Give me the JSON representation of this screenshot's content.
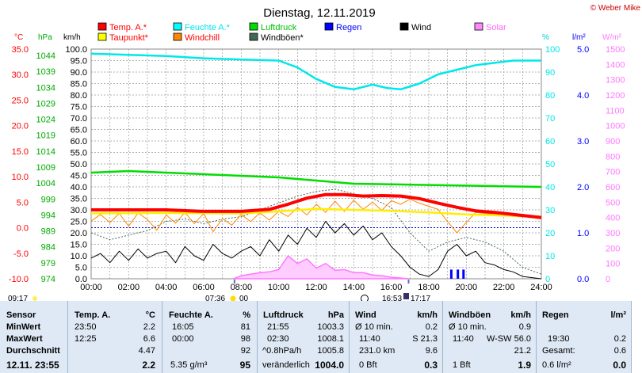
{
  "title": "Dienstag, 12.11.2019",
  "copyright": "© Weber Mike",
  "legend": [
    {
      "label": "Temp. A.*",
      "color": "#ff0000",
      "text_color": "#ff0000"
    },
    {
      "label": "Feuchte A.*",
      "color": "#00ffff",
      "text_color": "#00e5e5"
    },
    {
      "label": "Luftdruck",
      "color": "#00dd00",
      "text_color": "#00c000"
    },
    {
      "label": "Regen",
      "color": "#0000ff",
      "text_color": "#0000ff"
    },
    {
      "label": "Wind",
      "color": "#000000",
      "text_color": "#000000"
    },
    {
      "label": "Solar",
      "color": "#ff88ff",
      "text_color": "#ff66ff"
    },
    {
      "label": "Taupunkt*",
      "color": "#ffff00",
      "text_color": "#ff0000"
    },
    {
      "label": "Windchill",
      "color": "#ff8800",
      "text_color": "#ff0000"
    },
    {
      "label": "Windböen*",
      "color": "#446655",
      "text_color": "#000000"
    }
  ],
  "axes": {
    "temp": {
      "unit": "°C",
      "ticks": [
        "35.0",
        "30.0",
        "25.0",
        "20.0",
        "15.0",
        "10.0",
        "5.0",
        "0.0",
        "-5.0",
        "-10.0"
      ],
      "color": "#ff0000"
    },
    "pressure": {
      "unit": "hPa",
      "ticks": [
        "1044",
        "1039",
        "1034",
        "1029",
        "1024",
        "1019",
        "1014",
        "1009",
        "1004",
        "999",
        "994",
        "989",
        "984",
        "979",
        "974"
      ],
      "color": "#00aa00"
    },
    "wind": {
      "unit": "km/h",
      "ticks": [
        "100.0",
        "95.0",
        "90.0",
        "85.0",
        "80.0",
        "75.0",
        "70.0",
        "65.0",
        "60.0",
        "55.0",
        "50.0",
        "45.0",
        "40.0",
        "35.0",
        "30.0",
        "25.0",
        "20.0",
        "15.0",
        "10.0",
        "5.0",
        "0.0"
      ],
      "color": "#000000"
    },
    "humidity": {
      "unit": "%",
      "ticks": [
        "100",
        "90",
        "80",
        "70",
        "60",
        "50",
        "40",
        "30",
        "20",
        "10",
        "0"
      ],
      "color": "#00e5e5"
    },
    "rain": {
      "unit": "l/m²",
      "ticks": [
        "5.0",
        "4.0",
        "3.0",
        "2.0",
        "1.0",
        "0.0"
      ],
      "color": "#0000ff"
    },
    "solar": {
      "unit": "W/m²",
      "ticks": [
        "1500",
        "1400",
        "1300",
        "1200",
        "1100",
        "1000",
        "900",
        "800",
        "700",
        "600",
        "500",
        "400",
        "300",
        "200",
        "100",
        "0"
      ],
      "color": "#ff77ff"
    },
    "x_ticks": [
      "00:00",
      "02:00",
      "04:00",
      "06:00",
      "08:00",
      "10:00",
      "12:00",
      "14:00",
      "16:00",
      "18:00",
      "20:00",
      "22:00",
      "24:00"
    ]
  },
  "sun_moon": {
    "left_time": "09:17",
    "sunrise": "07:36",
    "sunrise_b": "00",
    "sunset": "16:53",
    "moonset": "17:17"
  },
  "chart_data": {
    "type": "line",
    "title": "Dienstag, 12.11.2019",
    "x_unit": "hours",
    "series": [
      {
        "name": "Temp. A.*",
        "axis": "temp",
        "points": [
          [
            0,
            3.5
          ],
          [
            2,
            3.5
          ],
          [
            4,
            3.5
          ],
          [
            6,
            3.2
          ],
          [
            8,
            3.2
          ],
          [
            9.5,
            3.6
          ],
          [
            10.5,
            4.6
          ],
          [
            11.5,
            5.8
          ],
          [
            12.5,
            6.5
          ],
          [
            13.5,
            6.5
          ],
          [
            14.5,
            6.2
          ],
          [
            15.5,
            6.3
          ],
          [
            16.5,
            6.2
          ],
          [
            17.5,
            5.7
          ],
          [
            18.5,
            4.8
          ],
          [
            19.5,
            4.0
          ],
          [
            20.5,
            3.3
          ],
          [
            21.5,
            3.0
          ],
          [
            22.5,
            2.6
          ],
          [
            24,
            2.0
          ]
        ]
      },
      {
        "name": "Taupunkt*",
        "axis": "temp",
        "points": [
          [
            0,
            2.8
          ],
          [
            4,
            2.9
          ],
          [
            8,
            2.8
          ],
          [
            10,
            3.2
          ],
          [
            12,
            3.7
          ],
          [
            14,
            3.5
          ],
          [
            16,
            3.3
          ],
          [
            18,
            3.0
          ],
          [
            20,
            2.6
          ],
          [
            22,
            2.4
          ],
          [
            24,
            2.2
          ]
        ]
      },
      {
        "name": "Windchill",
        "axis": "temp",
        "points": [
          [
            0,
            1.3
          ],
          [
            0.5,
            2.6
          ],
          [
            1,
            1.0
          ],
          [
            1.5,
            2.8
          ],
          [
            2,
            0.3
          ],
          [
            2.5,
            2.9
          ],
          [
            3,
            1.6
          ],
          [
            3.5,
            -0.5
          ],
          [
            4,
            2.5
          ],
          [
            4.5,
            0.9
          ],
          [
            5,
            3.0
          ],
          [
            5.5,
            0.8
          ],
          [
            6,
            2.8
          ],
          [
            6.5,
            -0.8
          ],
          [
            7,
            1.8
          ],
          [
            7.5,
            0.5
          ],
          [
            8,
            2.6
          ],
          [
            8.5,
            1.2
          ],
          [
            9,
            2.9
          ],
          [
            9.5,
            1.5
          ],
          [
            10,
            3.2
          ],
          [
            10.5,
            2.2
          ],
          [
            11,
            4.0
          ],
          [
            11.5,
            2.5
          ],
          [
            12,
            4.6
          ],
          [
            12.5,
            3.0
          ],
          [
            13,
            5.2
          ],
          [
            13.5,
            3.2
          ],
          [
            14,
            5.4
          ],
          [
            14.5,
            3.6
          ],
          [
            15,
            5.0
          ],
          [
            15.5,
            3.4
          ],
          [
            16,
            5.3
          ],
          [
            16.5,
            4.6
          ],
          [
            17,
            5.6
          ],
          [
            17.5,
            4.8
          ],
          [
            18,
            4.2
          ],
          [
            18.5,
            3.6
          ],
          [
            19,
            1.2
          ],
          [
            19.5,
            -1.0
          ],
          [
            20,
            1.0
          ],
          [
            20.5,
            3.0
          ],
          [
            21,
            2.8
          ],
          [
            21.5,
            2.6
          ],
          [
            22,
            2.4
          ],
          [
            22.5,
            2.2
          ],
          [
            24,
            2.0
          ]
        ]
      },
      {
        "name": "Feuchte A.*",
        "axis": "humidity",
        "points": [
          [
            0,
            98
          ],
          [
            2,
            97.5
          ],
          [
            4,
            97
          ],
          [
            6,
            96
          ],
          [
            8,
            95.5
          ],
          [
            10,
            95
          ],
          [
            11,
            92
          ],
          [
            12,
            87
          ],
          [
            13,
            83.5
          ],
          [
            14,
            82.5
          ],
          [
            15,
            84.5
          ],
          [
            15.8,
            83
          ],
          [
            16.5,
            82.5
          ],
          [
            17.5,
            85
          ],
          [
            18.5,
            89
          ],
          [
            19.5,
            91
          ],
          [
            20.5,
            93
          ],
          [
            21.5,
            94
          ],
          [
            22.5,
            95
          ],
          [
            24,
            95
          ]
        ]
      },
      {
        "name": "Luftdruck",
        "axis": "pressure",
        "points": [
          [
            0,
            1007.5
          ],
          [
            2,
            1008
          ],
          [
            4,
            1007.5
          ],
          [
            6,
            1007
          ],
          [
            8,
            1006.5
          ],
          [
            10,
            1006
          ],
          [
            12,
            1005
          ],
          [
            14,
            1004
          ],
          [
            16,
            1003.8
          ],
          [
            18,
            1003.6
          ],
          [
            20,
            1003.4
          ],
          [
            22,
            1003.2
          ],
          [
            24,
            1003.0
          ]
        ]
      },
      {
        "name": "Wind",
        "axis": "wind",
        "points": [
          [
            0,
            9
          ],
          [
            0.5,
            11
          ],
          [
            1,
            7
          ],
          [
            1.5,
            12
          ],
          [
            2,
            8
          ],
          [
            2.5,
            13
          ],
          [
            3,
            9
          ],
          [
            3.5,
            11
          ],
          [
            4,
            12
          ],
          [
            4.5,
            7
          ],
          [
            5,
            14
          ],
          [
            5.5,
            10
          ],
          [
            6,
            8
          ],
          [
            6.5,
            15
          ],
          [
            7,
            11
          ],
          [
            7.5,
            9
          ],
          [
            8,
            12
          ],
          [
            8.5,
            14
          ],
          [
            9,
            10
          ],
          [
            9.5,
            17
          ],
          [
            10,
            12
          ],
          [
            10.5,
            19
          ],
          [
            11,
            15
          ],
          [
            11.5,
            22
          ],
          [
            12,
            18
          ],
          [
            12.5,
            25
          ],
          [
            13,
            20
          ],
          [
            13.5,
            24
          ],
          [
            14,
            19
          ],
          [
            14.5,
            23
          ],
          [
            15,
            17
          ],
          [
            15.5,
            20
          ],
          [
            16,
            14
          ],
          [
            16.5,
            10
          ],
          [
            17,
            5
          ],
          [
            17.5,
            2
          ],
          [
            18,
            1
          ],
          [
            18.5,
            4
          ],
          [
            19,
            12
          ],
          [
            19.5,
            15
          ],
          [
            20,
            10
          ],
          [
            20.5,
            12
          ],
          [
            21,
            7
          ],
          [
            21.5,
            6
          ],
          [
            22,
            4
          ],
          [
            22.5,
            3
          ],
          [
            23,
            1
          ],
          [
            24,
            0
          ]
        ]
      },
      {
        "name": "Windböen*",
        "axis": "wind",
        "points": [
          [
            0,
            20
          ],
          [
            1,
            17
          ],
          [
            2,
            19
          ],
          [
            3,
            21
          ],
          [
            4,
            25
          ],
          [
            5,
            26
          ],
          [
            6,
            24
          ],
          [
            7,
            26
          ],
          [
            8,
            27
          ],
          [
            9,
            30
          ],
          [
            10,
            33
          ],
          [
            11,
            36
          ],
          [
            12,
            38
          ],
          [
            13,
            39
          ],
          [
            14,
            37
          ],
          [
            15,
            35
          ],
          [
            16,
            31
          ],
          [
            17,
            20
          ],
          [
            18,
            12
          ],
          [
            19,
            16
          ],
          [
            20,
            18
          ],
          [
            21,
            16
          ],
          [
            22,
            12
          ],
          [
            23,
            5
          ],
          [
            24,
            2
          ]
        ]
      },
      {
        "name": "Solar",
        "axis": "solar",
        "points": [
          [
            7.6,
            0
          ],
          [
            8,
            20
          ],
          [
            8.5,
            30
          ],
          [
            9,
            40
          ],
          [
            9.5,
            45
          ],
          [
            10,
            60
          ],
          [
            10.5,
            150
          ],
          [
            11,
            100
          ],
          [
            11.5,
            130
          ],
          [
            12,
            70
          ],
          [
            12.5,
            100
          ],
          [
            13,
            55
          ],
          [
            13.5,
            60
          ],
          [
            14,
            40
          ],
          [
            14.5,
            40
          ],
          [
            15,
            25
          ],
          [
            15.5,
            20
          ],
          [
            16,
            10
          ],
          [
            16.5,
            5
          ],
          [
            16.9,
            0
          ]
        ]
      },
      {
        "name": "Regen",
        "axis": "rain",
        "bars": [
          [
            19.2,
            0.2
          ],
          [
            19.55,
            0.2
          ],
          [
            19.85,
            0.2
          ]
        ]
      }
    ]
  },
  "table": {
    "sensor": {
      "header": "Sensor",
      "rows": [
        "MinWert",
        "MaxWert",
        "Durchschnitt"
      ],
      "footer": "12.11. 23:55"
    },
    "temp": {
      "header": "Temp. A.",
      "unit": "°C",
      "min_time": "23:50",
      "min": "2.2",
      "max_time": "12:25",
      "max": "6.6",
      "avg": "4.47",
      "current": "2.2"
    },
    "humidity": {
      "header": "Feuchte A.",
      "unit": "%",
      "min_time": "16:05",
      "min": "81",
      "max_time": "00:00",
      "max": "98",
      "avg": "92",
      "dew": "5.35 g/m³",
      "current": "95"
    },
    "pressure": {
      "header": "Luftdruck",
      "unit": "hPa",
      "min_time": "21:55",
      "min": "1003.3",
      "max_time": "02:30",
      "max": "1008.1",
      "trend": "^0.8hPa/h",
      "avg": "1005.8",
      "state": "veränderlich",
      "current": "1004.0"
    },
    "wind": {
      "header": "Wind",
      "unit": "km/h",
      "r1_label": "Ø 10 min.",
      "r1_val": "0.2",
      "r2_time": "11:40",
      "r2_val": "S 21.3",
      "r3_label": "231.0 km",
      "r3_val": "9.6",
      "r4_label": "0 Bft",
      "current": "0.3"
    },
    "gust": {
      "header": "Windböen",
      "unit": "km/h",
      "r1_label": "Ø 10 min.",
      "r1_val": "0.9",
      "r2_time": "11:40",
      "r2_val": "W-SW 56.0",
      "r3_val": "21.2",
      "r4_label": "1 Bft",
      "current": "1.9"
    },
    "rain": {
      "header": "Regen",
      "unit": "l/m²",
      "r2_time": "19:30",
      "r2_val": "0.2",
      "r3_label": "Gesamt:",
      "r3_val": "0.6",
      "r4_label": "0.6 l/m²",
      "current": "0.0"
    }
  }
}
